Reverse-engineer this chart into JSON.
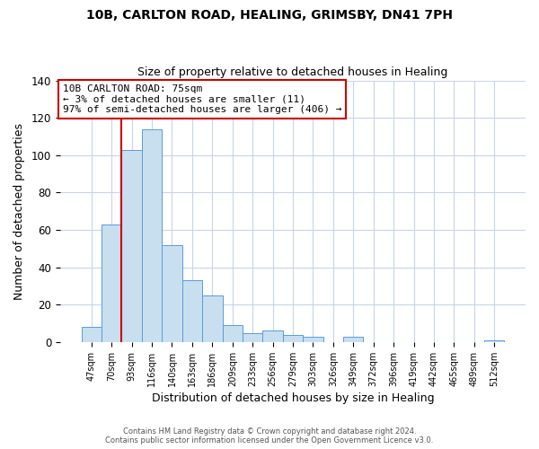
{
  "title": "10B, CARLTON ROAD, HEALING, GRIMSBY, DN41 7PH",
  "subtitle": "Size of property relative to detached houses in Healing",
  "xlabel": "Distribution of detached houses by size in Healing",
  "ylabel": "Number of detached properties",
  "bar_labels": [
    "47sqm",
    "70sqm",
    "93sqm",
    "116sqm",
    "140sqm",
    "163sqm",
    "186sqm",
    "209sqm",
    "233sqm",
    "256sqm",
    "279sqm",
    "303sqm",
    "326sqm",
    "349sqm",
    "372sqm",
    "396sqm",
    "419sqm",
    "442sqm",
    "465sqm",
    "489sqm",
    "512sqm"
  ],
  "bar_heights": [
    8,
    63,
    103,
    114,
    52,
    33,
    25,
    9,
    5,
    6,
    4,
    3,
    0,
    3,
    0,
    0,
    0,
    0,
    0,
    0,
    1
  ],
  "bar_color": "#c8dff0",
  "bar_edge_color": "#5b9bd5",
  "ylim": [
    0,
    140
  ],
  "yticks": [
    0,
    20,
    40,
    60,
    80,
    100,
    120,
    140
  ],
  "vline_x_index": 1,
  "vline_color": "#cc0000",
  "annotation_text": "10B CARLTON ROAD: 75sqm\n← 3% of detached houses are smaller (11)\n97% of semi-detached houses are larger (406) →",
  "annotation_box_color": "#ffffff",
  "annotation_box_edge_color": "#cc0000",
  "footer_line1": "Contains HM Land Registry data © Crown copyright and database right 2024.",
  "footer_line2": "Contains public sector information licensed under the Open Government Licence v3.0.",
  "background_color": "#ffffff",
  "grid_color": "#c8d4e8"
}
